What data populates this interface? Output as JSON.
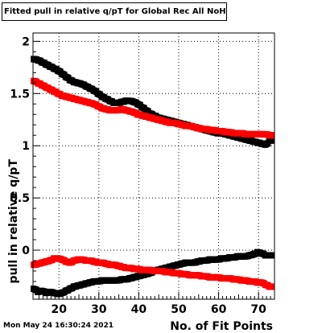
{
  "title": "Fitted pull in relative q/pT for Global Rec All NoHits",
  "timestamp": "Mon May 24 16:30:24 2021",
  "chart_data": {
    "type": "scatter",
    "xlabel": "No. of Fit Points",
    "ylabel": "pull in relative q/pT",
    "xlim": [
      13.5,
      74
    ],
    "ylim": [
      -0.47,
      2.08
    ],
    "xticks": [
      "20",
      "30",
      "40",
      "50",
      "60",
      "70"
    ],
    "yticks": [
      "0",
      "0.5",
      "1",
      "1.5",
      "2"
    ],
    "grid": true,
    "legend": "none",
    "marker": "square",
    "series": [
      {
        "color": "#000000",
        "x": [
          14,
          15,
          16,
          17,
          18,
          19,
          20,
          21,
          22,
          23,
          24,
          25,
          26,
          27,
          28,
          29,
          30,
          31,
          32,
          33,
          34,
          35,
          36,
          37,
          38,
          39,
          40,
          41,
          42,
          43,
          44,
          45,
          46,
          47,
          48,
          49,
          50,
          51,
          52,
          53,
          54,
          55,
          56,
          57,
          58,
          59,
          60,
          61,
          62,
          63,
          64,
          65,
          66,
          67,
          68,
          69,
          70,
          71,
          72,
          73
        ],
        "values": [
          1.83,
          1.82,
          1.8,
          1.78,
          1.76,
          1.74,
          1.72,
          1.69,
          1.66,
          1.63,
          1.61,
          1.6,
          1.59,
          1.57,
          1.55,
          1.53,
          1.5,
          1.47,
          1.45,
          1.43,
          1.41,
          1.41,
          1.42,
          1.43,
          1.43,
          1.42,
          1.4,
          1.37,
          1.34,
          1.31,
          1.29,
          1.27,
          1.26,
          1.25,
          1.24,
          1.23,
          1.22,
          1.21,
          1.2,
          1.19,
          1.18,
          1.17,
          1.16,
          1.15,
          1.14,
          1.13,
          1.12,
          1.12,
          1.11,
          1.1,
          1.09,
          1.08,
          1.07,
          1.06,
          1.05,
          1.04,
          1.03,
          1.02,
          1.01,
          1.05
        ]
      },
      {
        "color": "#ff0000",
        "x": [
          14,
          15,
          16,
          17,
          18,
          19,
          20,
          21,
          22,
          23,
          24,
          25,
          26,
          27,
          28,
          29,
          30,
          31,
          32,
          33,
          34,
          35,
          36,
          37,
          38,
          39,
          40,
          41,
          42,
          43,
          44,
          45,
          46,
          47,
          48,
          49,
          50,
          51,
          52,
          53,
          54,
          55,
          56,
          57,
          58,
          59,
          60,
          61,
          62,
          63,
          64,
          65,
          66,
          67,
          68,
          69,
          70,
          71,
          72,
          73
        ],
        "values": [
          1.62,
          1.6,
          1.58,
          1.56,
          1.54,
          1.52,
          1.5,
          1.48,
          1.47,
          1.46,
          1.45,
          1.44,
          1.43,
          1.42,
          1.41,
          1.4,
          1.38,
          1.36,
          1.35,
          1.34,
          1.34,
          1.34,
          1.35,
          1.34,
          1.33,
          1.32,
          1.3,
          1.29,
          1.28,
          1.27,
          1.26,
          1.25,
          1.24,
          1.23,
          1.22,
          1.22,
          1.21,
          1.2,
          1.19,
          1.19,
          1.18,
          1.17,
          1.16,
          1.16,
          1.15,
          1.15,
          1.14,
          1.14,
          1.13,
          1.13,
          1.12,
          1.12,
          1.12,
          1.11,
          1.11,
          1.11,
          1.11,
          1.11,
          1.11,
          1.1
        ]
      },
      {
        "color": "#000000",
        "x": [
          14,
          15,
          16,
          17,
          18,
          19,
          20,
          21,
          22,
          23,
          24,
          25,
          26,
          27,
          28,
          29,
          30,
          31,
          32,
          33,
          34,
          35,
          36,
          37,
          38,
          39,
          40,
          41,
          42,
          43,
          44,
          45,
          46,
          47,
          48,
          49,
          50,
          51,
          52,
          53,
          54,
          55,
          56,
          57,
          58,
          59,
          60,
          61,
          62,
          63,
          64,
          65,
          66,
          67,
          68,
          69,
          70,
          71,
          72,
          73
        ],
        "values": [
          -0.37,
          -0.4,
          -0.39,
          -0.41,
          -0.4,
          -0.41,
          -0.42,
          -0.41,
          -0.39,
          -0.37,
          -0.35,
          -0.34,
          -0.33,
          -0.32,
          -0.31,
          -0.3,
          -0.3,
          -0.29,
          -0.29,
          -0.29,
          -0.29,
          -0.29,
          -0.28,
          -0.28,
          -0.27,
          -0.26,
          -0.25,
          -0.24,
          -0.23,
          -0.22,
          -0.2,
          -0.19,
          -0.18,
          -0.17,
          -0.16,
          -0.15,
          -0.14,
          -0.13,
          -0.12,
          -0.12,
          -0.12,
          -0.11,
          -0.1,
          -0.1,
          -0.09,
          -0.09,
          -0.09,
          -0.08,
          -0.08,
          -0.07,
          -0.07,
          -0.06,
          -0.06,
          -0.06,
          -0.05,
          -0.04,
          -0.02,
          -0.03,
          -0.05,
          -0.05
        ]
      },
      {
        "color": "#ff0000",
        "x": [
          14,
          15,
          16,
          17,
          18,
          19,
          20,
          21,
          22,
          23,
          24,
          25,
          26,
          27,
          28,
          29,
          30,
          31,
          32,
          33,
          34,
          35,
          36,
          37,
          38,
          39,
          40,
          41,
          42,
          43,
          44,
          45,
          46,
          47,
          48,
          49,
          50,
          51,
          52,
          53,
          54,
          55,
          56,
          57,
          58,
          59,
          60,
          61,
          62,
          63,
          64,
          65,
          66,
          67,
          68,
          69,
          70,
          71,
          72,
          73
        ],
        "values": [
          -0.14,
          -0.13,
          -0.12,
          -0.11,
          -0.1,
          -0.08,
          -0.08,
          -0.09,
          -0.11,
          -0.12,
          -0.1,
          -0.09,
          -0.09,
          -0.1,
          -0.1,
          -0.11,
          -0.12,
          -0.12,
          -0.13,
          -0.14,
          -0.14,
          -0.15,
          -0.16,
          -0.17,
          -0.17,
          -0.18,
          -0.18,
          -0.19,
          -0.19,
          -0.19,
          -0.2,
          -0.2,
          -0.2,
          -0.21,
          -0.21,
          -0.22,
          -0.22,
          -0.23,
          -0.23,
          -0.24,
          -0.24,
          -0.24,
          -0.25,
          -0.25,
          -0.26,
          -0.26,
          -0.26,
          -0.27,
          -0.27,
          -0.27,
          -0.28,
          -0.28,
          -0.29,
          -0.29,
          -0.3,
          -0.3,
          -0.31,
          -0.31,
          -0.33,
          -0.35
        ]
      }
    ]
  }
}
